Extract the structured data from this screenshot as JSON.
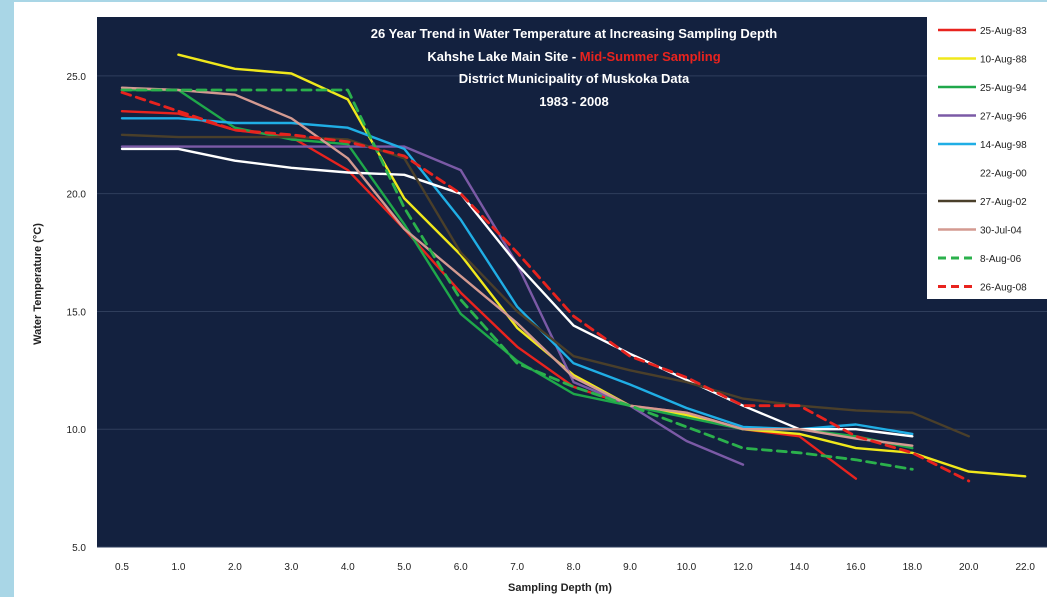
{
  "chart_data": {
    "type": "line",
    "title_lines": [
      "26 Year Trend in Water Temperature at Increasing Sampling Depth",
      "District Municipality  of Muskoka Data",
      "1983 - 2008"
    ],
    "title_site_prefix": "Kahshe Lake Main Site - ",
    "title_site_highlight": "Mid-Summer Sampling",
    "xlabel": "Sampling Depth (m)",
    "ylabel": "Water Temperature (°C)",
    "categories": [
      "0.5",
      "1.0",
      "2.0",
      "3.0",
      "4.0",
      "5.0",
      "6.0",
      "7.0",
      "8.0",
      "9.0",
      "10.0",
      "12.0",
      "14.0",
      "16.0",
      "18.0",
      "20.0",
      "22.0"
    ],
    "ylim": [
      5.0,
      27.5
    ],
    "yticks": [
      "5.0",
      "10.0",
      "15.0",
      "20.0",
      "25.0"
    ],
    "grid": true,
    "legend_position": "right",
    "background": "#13213f",
    "series": [
      {
        "name": "25-Aug-83",
        "color": "#e8231e",
        "dash": false,
        "values": [
          23.5,
          23.4,
          22.7,
          22.4,
          21.0,
          18.5,
          15.8,
          13.5,
          11.8,
          11.0,
          10.7,
          10.0,
          9.7,
          7.9,
          null,
          null,
          null
        ]
      },
      {
        "name": "10-Aug-88",
        "color": "#f0e81c",
        "dash": false,
        "values": [
          null,
          25.9,
          25.3,
          25.1,
          24.0,
          19.8,
          17.4,
          14.3,
          12.3,
          11.0,
          10.6,
          10.0,
          9.8,
          9.2,
          9.0,
          8.2,
          8.0
        ]
      },
      {
        "name": "25-Aug-94",
        "color": "#1fa84a",
        "dash": false,
        "values": [
          24.4,
          24.4,
          22.8,
          22.3,
          22.1,
          18.7,
          14.9,
          12.9,
          11.5,
          11.0,
          10.5,
          10.0,
          10.0,
          9.7,
          9.2,
          null,
          null
        ]
      },
      {
        "name": "27-Aug-96",
        "color": "#7b5aa6",
        "dash": false,
        "values": [
          22.0,
          22.0,
          22.0,
          22.0,
          22.0,
          22.0,
          21.0,
          17.0,
          12.0,
          11.0,
          9.5,
          8.5,
          null,
          null,
          null,
          null,
          null
        ]
      },
      {
        "name": "14-Aug-98",
        "color": "#20aee5",
        "dash": false,
        "values": [
          23.2,
          23.2,
          23.0,
          23.0,
          22.8,
          21.9,
          18.9,
          15.2,
          12.8,
          11.9,
          10.9,
          10.1,
          10.0,
          10.2,
          9.8,
          null,
          null
        ]
      },
      {
        "name": "22-Aug-00",
        "color": "#ffffff",
        "dash": false,
        "values": [
          21.9,
          21.9,
          21.4,
          21.1,
          20.9,
          20.8,
          20.0,
          17.0,
          14.4,
          13.2,
          12.1,
          11.0,
          10.0,
          10.0,
          9.7,
          null,
          null
        ]
      },
      {
        "name": "27-Aug-02",
        "color": "#4a3f2a",
        "dash": false,
        "values": [
          22.5,
          22.4,
          22.4,
          22.4,
          22.3,
          21.5,
          17.5,
          15.0,
          13.1,
          12.5,
          12.0,
          11.3,
          11.0,
          10.8,
          10.7,
          9.7,
          null
        ]
      },
      {
        "name": "30-Jul-04",
        "color": "#d49a91",
        "dash": false,
        "values": [
          24.5,
          24.4,
          24.2,
          23.2,
          21.5,
          18.5,
          16.5,
          14.5,
          12.2,
          11.0,
          10.7,
          10.0,
          10.0,
          9.6,
          9.3,
          null,
          null
        ]
      },
      {
        "name": "8-Aug-06",
        "color": "#2bb14c",
        "dash": true,
        "values": [
          24.4,
          24.4,
          24.4,
          24.4,
          24.4,
          19.4,
          15.5,
          12.8,
          11.8,
          11.0,
          10.1,
          9.2,
          9.0,
          8.7,
          8.3,
          null,
          null
        ]
      },
      {
        "name": "26-Aug-08",
        "color": "#e8231e",
        "dash": true,
        "values": [
          24.3,
          23.5,
          22.7,
          22.5,
          22.2,
          21.6,
          20.0,
          17.5,
          14.8,
          13.1,
          12.2,
          11.0,
          11.0,
          9.7,
          9.0,
          7.8,
          null
        ]
      }
    ]
  }
}
